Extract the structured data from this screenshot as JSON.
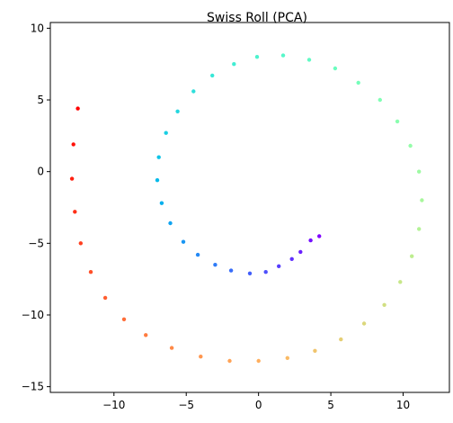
{
  "chart_data": {
    "type": "scatter",
    "title": "Swiss Roll (PCA)",
    "xlabel": "",
    "ylabel": "",
    "xlim": [
      -14.4,
      13.2
    ],
    "ylim": [
      -15.4,
      10.4
    ],
    "xticks": [
      -10,
      -5,
      0,
      5,
      10
    ],
    "yticks": [
      -15,
      -10,
      -5,
      0,
      5,
      10
    ],
    "grid": false,
    "colormap": "rainbow",
    "series": [
      {
        "points": [
          {
            "x": 4.2,
            "y": -4.5,
            "t": 0.0
          },
          {
            "x": 3.6,
            "y": -4.8,
            "t": 0.02
          },
          {
            "x": 2.9,
            "y": -5.6,
            "t": 0.04
          },
          {
            "x": 2.3,
            "y": -6.1,
            "t": 0.06
          },
          {
            "x": 1.4,
            "y": -6.6,
            "t": 0.08
          },
          {
            "x": 0.5,
            "y": -7.0,
            "t": 0.1
          },
          {
            "x": -0.6,
            "y": -7.1,
            "t": 0.12
          },
          {
            "x": -1.9,
            "y": -6.9,
            "t": 0.14
          },
          {
            "x": -3.0,
            "y": -6.5,
            "t": 0.16
          },
          {
            "x": -4.2,
            "y": -5.8,
            "t": 0.18
          },
          {
            "x": -5.2,
            "y": -4.9,
            "t": 0.2
          },
          {
            "x": -6.1,
            "y": -3.6,
            "t": 0.22
          },
          {
            "x": -6.7,
            "y": -2.2,
            "t": 0.24
          },
          {
            "x": -7.0,
            "y": -0.6,
            "t": 0.26
          },
          {
            "x": -6.9,
            "y": 1.0,
            "t": 0.28
          },
          {
            "x": -6.4,
            "y": 2.7,
            "t": 0.3
          },
          {
            "x": -5.6,
            "y": 4.2,
            "t": 0.32
          },
          {
            "x": -4.5,
            "y": 5.6,
            "t": 0.34
          },
          {
            "x": -3.2,
            "y": 6.7,
            "t": 0.36
          },
          {
            "x": -1.7,
            "y": 7.5,
            "t": 0.38
          },
          {
            "x": -0.1,
            "y": 8.0,
            "t": 0.4
          },
          {
            "x": 1.7,
            "y": 8.1,
            "t": 0.42
          },
          {
            "x": 3.5,
            "y": 7.8,
            "t": 0.44
          },
          {
            "x": 5.3,
            "y": 7.2,
            "t": 0.46
          },
          {
            "x": 6.9,
            "y": 6.2,
            "t": 0.48
          },
          {
            "x": 8.4,
            "y": 5.0,
            "t": 0.5
          },
          {
            "x": 9.6,
            "y": 3.5,
            "t": 0.52
          },
          {
            "x": 10.5,
            "y": 1.8,
            "t": 0.54
          },
          {
            "x": 11.1,
            "y": 0.0,
            "t": 0.56
          },
          {
            "x": 11.3,
            "y": -2.0,
            "t": 0.58
          },
          {
            "x": 11.1,
            "y": -4.0,
            "t": 0.6
          },
          {
            "x": 10.6,
            "y": -5.9,
            "t": 0.62
          },
          {
            "x": 9.8,
            "y": -7.7,
            "t": 0.64
          },
          {
            "x": 8.7,
            "y": -9.3,
            "t": 0.66
          },
          {
            "x": 7.3,
            "y": -10.6,
            "t": 0.68
          },
          {
            "x": 5.7,
            "y": -11.7,
            "t": 0.7
          },
          {
            "x": 3.9,
            "y": -12.5,
            "t": 0.72
          },
          {
            "x": 2.0,
            "y": -13.0,
            "t": 0.74
          },
          {
            "x": 0.0,
            "y": -13.2,
            "t": 0.76
          },
          {
            "x": -2.0,
            "y": -13.2,
            "t": 0.78
          },
          {
            "x": -4.0,
            "y": -12.9,
            "t": 0.8
          },
          {
            "x": -6.0,
            "y": -12.3,
            "t": 0.82
          },
          {
            "x": -7.8,
            "y": -11.4,
            "t": 0.84
          },
          {
            "x": -9.3,
            "y": -10.3,
            "t": 0.86
          },
          {
            "x": -10.6,
            "y": -8.8,
            "t": 0.88
          },
          {
            "x": -11.6,
            "y": -7.0,
            "t": 0.9
          },
          {
            "x": -12.3,
            "y": -5.0,
            "t": 0.92
          },
          {
            "x": -12.7,
            "y": -2.8,
            "t": 0.94
          },
          {
            "x": -12.9,
            "y": -0.5,
            "t": 0.96
          },
          {
            "x": -12.8,
            "y": 1.9,
            "t": 0.98
          },
          {
            "x": -12.5,
            "y": 4.4,
            "t": 1.0
          }
        ]
      }
    ]
  }
}
